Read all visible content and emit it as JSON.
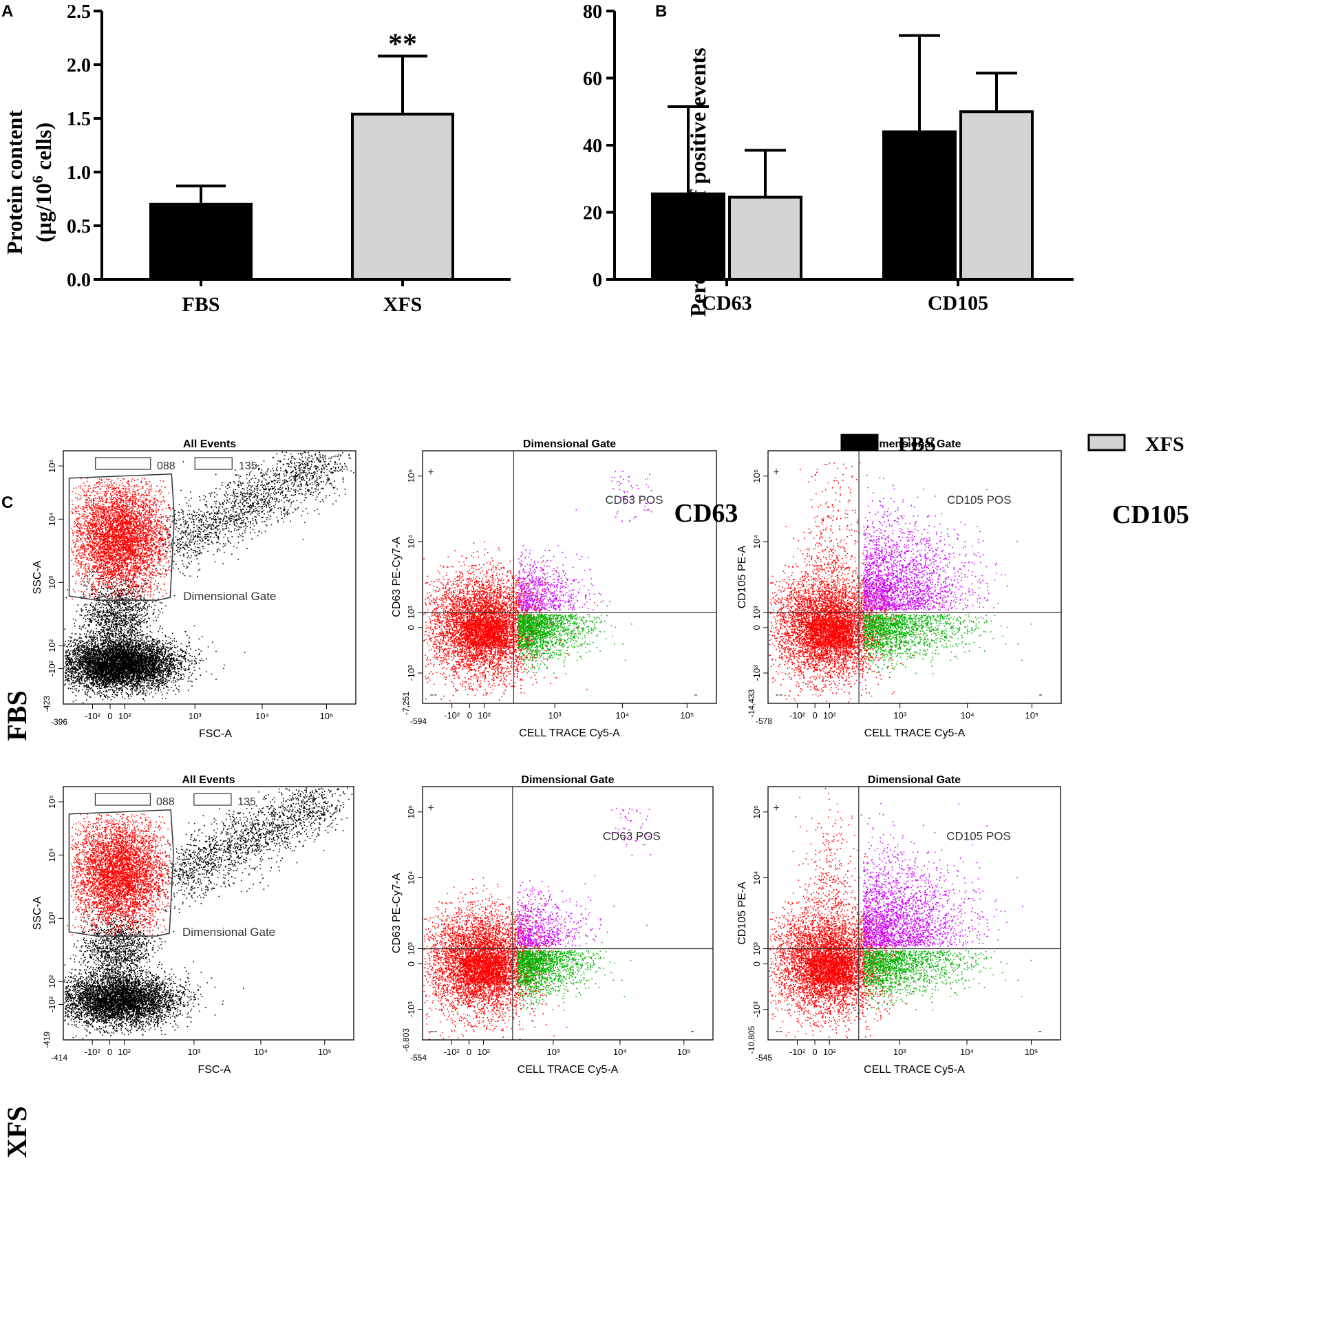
{
  "panel_labels": {
    "a": "A",
    "b": "B",
    "c": "C"
  },
  "colors": {
    "fbs": "#000000",
    "xfs": "#d3d3d3",
    "gated": "#ff0000",
    "ungated": "#000000",
    "pos": "#cc00ff",
    "neg_pos": "#00b400",
    "frame": "#000000"
  },
  "chart_data": [
    {
      "id": "A",
      "type": "bar",
      "categories": [
        "FBS",
        "XFS"
      ],
      "values": [
        0.7,
        1.54
      ],
      "errors": [
        0.17,
        0.54
      ],
      "bar_colors": [
        "#000000",
        "#d3d3d3"
      ],
      "ylabel_line1": "Protein content",
      "ylabel_line2_prefix": "(µg/10",
      "ylabel_line2_sup": "6",
      "ylabel_line2_suffix": " cells)",
      "ylim": [
        0,
        2.5
      ],
      "yticks": [
        "0.0",
        "0.5",
        "1.0",
        "1.5",
        "2.0",
        "2.5"
      ],
      "annotation": "**",
      "annotation_category": "XFS"
    },
    {
      "id": "B",
      "type": "bar",
      "categories": [
        "CD63",
        "CD105"
      ],
      "series": [
        {
          "name": "FBS",
          "values": [
            25.5,
            44
          ],
          "errors": [
            26,
            28.7
          ],
          "color": "#000000"
        },
        {
          "name": "XFS",
          "values": [
            24.5,
            50
          ],
          "errors": [
            14,
            11.5
          ],
          "color": "#d3d3d3"
        }
      ],
      "ylabel": "Percentage of positive events",
      "ylim": [
        0,
        80
      ],
      "yticks": [
        "0",
        "20",
        "40",
        "60",
        "80"
      ],
      "legend": [
        "FBS",
        "XFS"
      ],
      "legend_position": "bottom"
    }
  ],
  "panel_c": {
    "column_titles": [
      "CD63",
      "CD105"
    ],
    "row_labels": [
      "FBS",
      "XFS"
    ],
    "plots": [
      {
        "type": "scatter",
        "row": "FBS",
        "title": "All Events",
        "kind": "gate",
        "xlabel": "FSC-A",
        "ylabel": "SSC-A",
        "gate_label": "Dimensional Gate",
        "box_labels": [
          "088",
          "135"
        ],
        "x_min": "-396",
        "y_min": "-423",
        "xticks": [
          "-10²",
          "0",
          "10²",
          "10³",
          "10⁴",
          "10⁵"
        ],
        "yticks": [
          "-10²",
          "10²",
          "10³",
          "10⁴",
          "10⁵"
        ]
      },
      {
        "type": "scatter",
        "row": "FBS",
        "title": "Dimensional Gate",
        "kind": "quad",
        "xlabel": "CELL TRACE Cy5-A",
        "ylabel": "CD63 PE-Cy7-A",
        "pos_label": "CD63 POS",
        "x_min": "-594",
        "y_min": "-7,251",
        "xticks": [
          "-10²",
          "0",
          "10²",
          "10³",
          "10⁴",
          "10⁵"
        ],
        "yticks": [
          "-10³",
          "0",
          "10³",
          "10⁴",
          "10⁵"
        ],
        "quad_marks": [
          "+",
          "--",
          "-"
        ]
      },
      {
        "type": "scatter",
        "row": "FBS",
        "title": "Dimensional Gate",
        "kind": "quad",
        "xlabel": "CELL TRACE Cy5-A",
        "ylabel": "CD105 PE-A",
        "pos_label": "CD105 POS",
        "x_min": "-578",
        "y_min": "-14,433",
        "xticks": [
          "-10²",
          "0",
          "10²",
          "10³",
          "10⁴",
          "10⁵"
        ],
        "yticks": [
          "-10³",
          "0",
          "10³",
          "10⁴",
          "10⁵"
        ],
        "quad_marks": [
          "+",
          "--",
          "-"
        ]
      },
      {
        "type": "scatter",
        "row": "XFS",
        "title": "All Events",
        "kind": "gate",
        "xlabel": "FSC-A",
        "ylabel": "SSC-A",
        "gate_label": "Dimensional Gate",
        "box_labels": [
          "088",
          "135"
        ],
        "x_min": "-414",
        "y_min": "-419",
        "xticks": [
          "-10²",
          "0",
          "10²",
          "10³",
          "10⁴",
          "10⁵"
        ],
        "yticks": [
          "-10²",
          "10²",
          "10³",
          "10⁴",
          "10⁵"
        ]
      },
      {
        "type": "scatter",
        "row": "XFS",
        "title": "Dimensional Gate",
        "kind": "quad",
        "xlabel": "CELL TRACE Cy5-A",
        "ylabel": "CD63 PE-Cy7-A",
        "pos_label": "CD63 POS",
        "x_min": "-554",
        "y_min": "-6,803",
        "xticks": [
          "-10²",
          "0",
          "10²",
          "10³",
          "10⁴",
          "10⁵"
        ],
        "yticks": [
          "-10³",
          "0",
          "10³",
          "10⁴",
          "10⁵"
        ],
        "quad_marks": [
          "+",
          "--",
          "-"
        ]
      },
      {
        "type": "scatter",
        "row": "XFS",
        "title": "Dimensional Gate",
        "kind": "quad",
        "xlabel": "CELL TRACE Cy5-A",
        "ylabel": "CD105 PE-A",
        "pos_label": "CD105 POS",
        "x_min": "-545",
        "y_min": "-10,805",
        "xticks": [
          "-10²",
          "0",
          "10²",
          "10³",
          "10⁴",
          "10⁵"
        ],
        "yticks": [
          "-10³",
          "0",
          "10³",
          "10⁴",
          "10⁵"
        ],
        "quad_marks": [
          "+",
          "--",
          "-"
        ]
      }
    ]
  }
}
